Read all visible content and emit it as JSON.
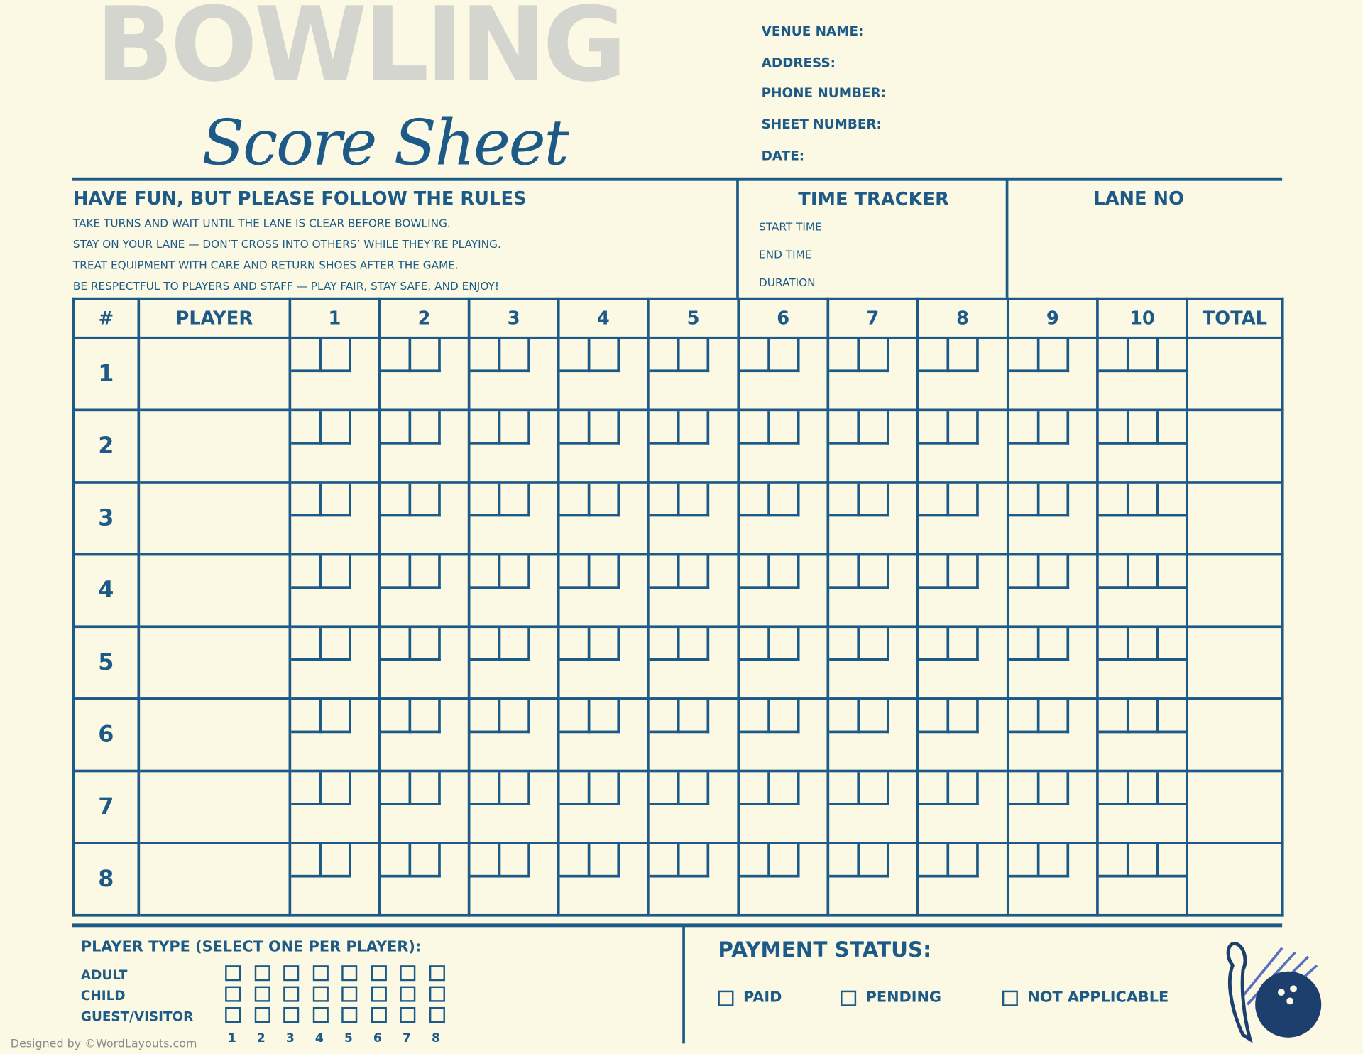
{
  "header": {
    "title_big": "BOWLING",
    "title_script": "Score Sheet",
    "info_fields": [
      "VENUE NAME:",
      "ADDRESS:",
      "PHONE NUMBER:",
      "SHEET NUMBER:",
      "DATE:"
    ]
  },
  "rules": {
    "title": "HAVE FUN, BUT PLEASE FOLLOW THE RULES",
    "items": [
      "TAKE TURNS AND WAIT UNTIL THE LANE IS CLEAR BEFORE BOWLING.",
      "STAY ON YOUR LANE — DON’T CROSS INTO OTHERS’ WHILE THEY’RE PLAYING.",
      "TREAT EQUIPMENT WITH CARE AND RETURN SHOES AFTER THE GAME.",
      "BE RESPECTFUL TO PLAYERS AND STAFF — PLAY FAIR, STAY SAFE, AND ENJOY!"
    ]
  },
  "time_tracker": {
    "title": "TIME TRACKER",
    "fields": [
      "START TIME",
      "END TIME",
      "DURATION"
    ]
  },
  "lane": {
    "title": "LANE NO"
  },
  "table": {
    "headers": [
      "#",
      "PLAYER",
      "1",
      "2",
      "3",
      "4",
      "5",
      "6",
      "7",
      "8",
      "9",
      "10",
      "TOTAL"
    ],
    "rows": [
      "1",
      "2",
      "3",
      "4",
      "5",
      "6",
      "7",
      "8"
    ]
  },
  "player_type": {
    "title": "PLAYER TYPE (SELECT ONE PER PLAYER):",
    "options": [
      "ADULT",
      "CHILD",
      "GUEST/VISITOR"
    ],
    "numbers": [
      "1",
      "2",
      "3",
      "4",
      "5",
      "6",
      "7",
      "8"
    ]
  },
  "payment": {
    "title": "PAYMENT STATUS:",
    "options": [
      "PAID",
      "PENDING",
      "NOT APPLICABLE"
    ]
  },
  "footer": {
    "credit": "Designed by ©WordLayouts.com"
  },
  "colors": {
    "primary": "#1d5a87",
    "background": "#fbf9e4",
    "title_gray": "#d5d5cf",
    "pin_accent": "#5b6fc0"
  },
  "icons": {
    "decoration": "bowling-pin-ball-icon"
  }
}
